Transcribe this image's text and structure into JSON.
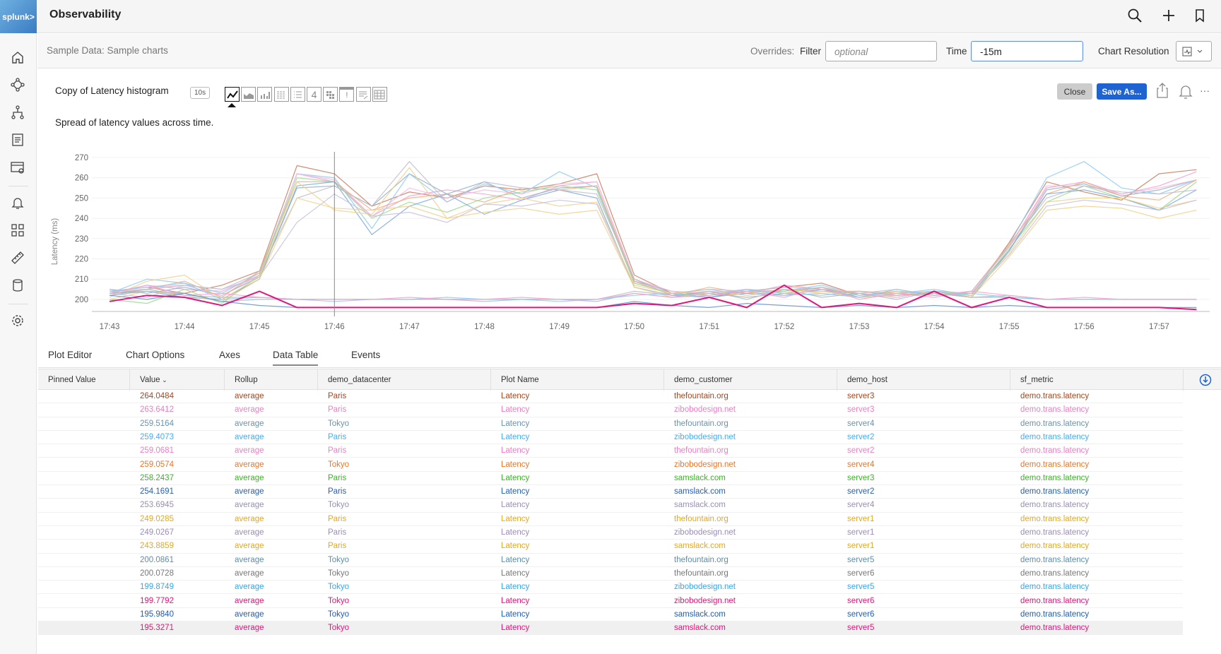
{
  "header": {
    "logo": "splunk>",
    "title": "Observability",
    "icons": [
      "search-icon",
      "plus-icon",
      "bookmark-icon"
    ]
  },
  "sidebar": {
    "icons": [
      "home-icon",
      "infrastructure-icon",
      "apm-icon",
      "logs-icon",
      "synthetics-icon",
      "alerts-icon",
      "dashboards-icon",
      "ruler-icon",
      "database-icon",
      "settings-icon"
    ]
  },
  "overrides": {
    "breadcrumb": "Sample Data: Sample charts",
    "overrides_label": "Overrides:",
    "filter_label": "Filter",
    "filter_placeholder": "optional",
    "time_label": "Time",
    "time_value": "-15m",
    "resolution_label": "Chart Resolution"
  },
  "chart_header": {
    "title": "Copy of Latency histogram",
    "refresh_badge": "10s",
    "description": "Spread of latency values across time.",
    "close_label": "Close",
    "save_as_label": "Save As...",
    "more_label": "···",
    "type_icons": [
      "line-chart-icon",
      "area-chart-icon",
      "column-chart-icon",
      "histogram-icon",
      "list-icon",
      "single-value-icon",
      "heatmap-icon",
      "event-feed-icon",
      "text-icon",
      "table-icon"
    ],
    "selected_type": "line-chart-icon",
    "type_labels": {
      "single": "4",
      "event": "!"
    }
  },
  "tabs": [
    {
      "label": "Plot Editor"
    },
    {
      "label": "Chart Options"
    },
    {
      "label": "Axes"
    },
    {
      "label": "Data Table",
      "active": true
    },
    {
      "label": "Events"
    }
  ],
  "table": {
    "columns": [
      "Pinned Value",
      "Value",
      "Rollup",
      "demo_datacenter",
      "Plot Name",
      "demo_customer",
      "demo_host",
      "sf_metric"
    ],
    "sort_indicator": "⌄",
    "rows": [
      {
        "value": "264.0484",
        "rollup": "average",
        "dc": "Paris",
        "plot": "Latency",
        "customer": "thefountain.org",
        "host": "server3",
        "metric": "demo.trans.latency",
        "color": "#a8461f"
      },
      {
        "value": "263.6412",
        "rollup": "average",
        "dc": "Paris",
        "plot": "Latency",
        "customer": "zibobodesign.net",
        "host": "server3",
        "metric": "demo.trans.latency",
        "color": "#f07cc4"
      },
      {
        "value": "259.5164",
        "rollup": "average",
        "dc": "Tokyo",
        "plot": "Latency",
        "customer": "thefountain.org",
        "host": "server4",
        "metric": "demo.trans.latency",
        "color": "#6a93ad"
      },
      {
        "value": "259.4073",
        "rollup": "average",
        "dc": "Paris",
        "plot": "Latency",
        "customer": "zibobodesign.net",
        "host": "server2",
        "metric": "demo.trans.latency",
        "color": "#45adf5"
      },
      {
        "value": "259.0681",
        "rollup": "average",
        "dc": "Paris",
        "plot": "Latency",
        "customer": "thefountain.org",
        "host": "server2",
        "metric": "demo.trans.latency",
        "color": "#f07cc4"
      },
      {
        "value": "259.0574",
        "rollup": "average",
        "dc": "Tokyo",
        "plot": "Latency",
        "customer": "zibobodesign.net",
        "host": "server4",
        "metric": "demo.trans.latency",
        "color": "#e8762a"
      },
      {
        "value": "258.2437",
        "rollup": "average",
        "dc": "Paris",
        "plot": "Latency",
        "customer": "samslack.com",
        "host": "server3",
        "metric": "demo.trans.latency",
        "color": "#3db22a"
      },
      {
        "value": "254.1691",
        "rollup": "average",
        "dc": "Paris",
        "plot": "Latency",
        "customer": "samslack.com",
        "host": "server2",
        "metric": "demo.trans.latency",
        "color": "#2461b5"
      },
      {
        "value": "253.6945",
        "rollup": "average",
        "dc": "Tokyo",
        "plot": "Latency",
        "customer": "samslack.com",
        "host": "server4",
        "metric": "demo.trans.latency",
        "color": "#9a8fb2"
      },
      {
        "value": "249.0285",
        "rollup": "average",
        "dc": "Paris",
        "plot": "Latency",
        "customer": "thefountain.org",
        "host": "server1",
        "metric": "demo.trans.latency",
        "color": "#e0a82a"
      },
      {
        "value": "249.0267",
        "rollup": "average",
        "dc": "Paris",
        "plot": "Latency",
        "customer": "zibobodesign.net",
        "host": "server1",
        "metric": "demo.trans.latency",
        "color": "#9a8cb8"
      },
      {
        "value": "243.8859",
        "rollup": "average",
        "dc": "Paris",
        "plot": "Latency",
        "customer": "samslack.com",
        "host": "server1",
        "metric": "demo.trans.latency",
        "color": "#e0a82a"
      },
      {
        "value": "200.0861",
        "rollup": "average",
        "dc": "Tokyo",
        "plot": "Latency",
        "customer": "thefountain.org",
        "host": "server5",
        "metric": "demo.trans.latency",
        "color": "#5e8ea8"
      },
      {
        "value": "200.0728",
        "rollup": "average",
        "dc": "Tokyo",
        "plot": "Latency",
        "customer": "thefountain.org",
        "host": "server6",
        "metric": "demo.trans.latency",
        "color": "#777777"
      },
      {
        "value": "199.8749",
        "rollup": "average",
        "dc": "Tokyo",
        "plot": "Latency",
        "customer": "zibobodesign.net",
        "host": "server5",
        "metric": "demo.trans.latency",
        "color": "#33a8f0"
      },
      {
        "value": "199.7792",
        "rollup": "average",
        "dc": "Tokyo",
        "plot": "Latency",
        "customer": "zibobodesign.net",
        "host": "server6",
        "metric": "demo.trans.latency",
        "color": "#e0177a"
      },
      {
        "value": "195.9840",
        "rollup": "average",
        "dc": "Tokyo",
        "plot": "Latency",
        "customer": "samslack.com",
        "host": "server6",
        "metric": "demo.trans.latency",
        "color": "#1f5db5"
      },
      {
        "value": "195.3271",
        "rollup": "average",
        "dc": "Tokyo",
        "plot": "Latency",
        "customer": "samslack.com",
        "host": "server5",
        "metric": "demo.trans.latency",
        "color": "#e0177a",
        "highlighted": true
      }
    ]
  },
  "chart_data": {
    "type": "line",
    "xlabel": "",
    "ylabel": "Latency (ms)",
    "ylim": [
      193,
      272
    ],
    "yticks": [
      200,
      210,
      220,
      230,
      240,
      250,
      260,
      270
    ],
    "xticks": [
      "17:43",
      "17:44",
      "17:45",
      "17:46",
      "17:47",
      "17:48",
      "17:49",
      "17:50",
      "17:51",
      "17:52",
      "17:53",
      "17:54",
      "17:55",
      "17:56",
      "17:57"
    ],
    "x": [
      "17:43:00",
      "17:43:30",
      "17:44:00",
      "17:44:30",
      "17:45:00",
      "17:45:30",
      "17:46:00",
      "17:46:30",
      "17:47:00",
      "17:47:30",
      "17:48:00",
      "17:48:30",
      "17:49:00",
      "17:49:30",
      "17:50:00",
      "17:50:30",
      "17:51:00",
      "17:51:30",
      "17:52:00",
      "17:52:30",
      "17:53:00",
      "17:53:30",
      "17:54:00",
      "17:54:30",
      "17:55:00",
      "17:55:30",
      "17:56:00",
      "17:56:30",
      "17:57:00",
      "17:57:30"
    ],
    "cursor": "17:46:00",
    "grid": true,
    "series": [
      {
        "color": "#c97a5a",
        "values": [
          204,
          206,
          203,
          207,
          214,
          266,
          262,
          246,
          253,
          250,
          256,
          254,
          257,
          262,
          212,
          203,
          201,
          204,
          206,
          208,
          202,
          204,
          203,
          202,
          228,
          258,
          253,
          249,
          262,
          264
        ]
      },
      {
        "color": "#f5a0d0",
        "values": [
          203,
          207,
          205,
          204,
          212,
          262,
          258,
          241,
          251,
          254,
          252,
          249,
          256,
          258,
          210,
          202,
          204,
          203,
          207,
          205,
          203,
          201,
          204,
          203,
          226,
          255,
          258,
          252,
          256,
          263
        ]
      },
      {
        "color": "#8fb0c6",
        "values": [
          205,
          203,
          206,
          202,
          211,
          255,
          256,
          246,
          262,
          252,
          258,
          250,
          255,
          256,
          209,
          204,
          202,
          205,
          203,
          206,
          201,
          204,
          202,
          203,
          224,
          254,
          257,
          251,
          254,
          259
        ]
      },
      {
        "color": "#8ccaf7",
        "values": [
          203,
          210,
          208,
          203,
          213,
          262,
          260,
          235,
          262,
          248,
          257,
          252,
          263,
          255,
          208,
          203,
          205,
          202,
          204,
          207,
          202,
          203,
          205,
          202,
          227,
          260,
          268,
          255,
          252,
          259
        ]
      },
      {
        "color": "#f7b8dc",
        "values": [
          204,
          206,
          207,
          202,
          212,
          262,
          259,
          241,
          255,
          250,
          254,
          252,
          257,
          258,
          210,
          204,
          203,
          205,
          204,
          206,
          203,
          202,
          204,
          203,
          226,
          256,
          256,
          252,
          255,
          259
        ]
      },
      {
        "color": "#f0ae80",
        "values": [
          202,
          205,
          209,
          201,
          214,
          258,
          258,
          244,
          250,
          252,
          248,
          255,
          254,
          256,
          209,
          202,
          206,
          203,
          205,
          204,
          204,
          203,
          202,
          204,
          227,
          252,
          258,
          251,
          249,
          259
        ]
      },
      {
        "color": "#9ad98e",
        "values": [
          200,
          198,
          205,
          198,
          212,
          260,
          258,
          240,
          248,
          243,
          250,
          253,
          256,
          254,
          208,
          203,
          202,
          204,
          204,
          206,
          202,
          203,
          204,
          202,
          225,
          248,
          256,
          250,
          244,
          258
        ]
      },
      {
        "color": "#7aa8e0",
        "values": [
          203,
          204,
          201,
          200,
          210,
          256,
          258,
          232,
          246,
          252,
          242,
          249,
          254,
          250,
          206,
          202,
          201,
          203,
          202,
          205,
          201,
          202,
          203,
          201,
          224,
          252,
          254,
          250,
          244,
          254
        ]
      },
      {
        "color": "#c0bccc",
        "values": [
          204,
          205,
          207,
          205,
          213,
          250,
          256,
          246,
          268,
          248,
          258,
          255,
          254,
          252,
          210,
          203,
          205,
          204,
          206,
          205,
          203,
          205,
          202,
          204,
          226,
          250,
          256,
          253,
          252,
          254
        ]
      },
      {
        "color": "#f0d08a",
        "values": [
          201,
          209,
          212,
          200,
          211,
          258,
          244,
          242,
          265,
          240,
          247,
          250,
          246,
          248,
          207,
          203,
          204,
          202,
          205,
          203,
          201,
          204,
          203,
          202,
          223,
          248,
          250,
          250,
          245,
          249
        ]
      },
      {
        "color": "#c7bedc",
        "values": [
          203,
          201,
          207,
          205,
          211,
          238,
          252,
          241,
          243,
          238,
          247,
          246,
          249,
          247,
          206,
          202,
          203,
          205,
          203,
          204,
          202,
          203,
          204,
          203,
          222,
          246,
          249,
          247,
          244,
          249
        ]
      },
      {
        "color": "#f0d08a",
        "values": [
          200,
          204,
          202,
          199,
          210,
          250,
          245,
          244,
          246,
          240,
          243,
          245,
          242,
          244,
          206,
          201,
          203,
          201,
          203,
          204,
          201,
          202,
          203,
          201,
          221,
          244,
          246,
          245,
          240,
          244
        ]
      },
      {
        "color": "#9dbccd",
        "values": [
          202,
          204,
          203,
          199,
          200,
          200,
          200,
          200,
          200,
          200,
          199,
          200,
          200,
          199,
          203,
          201,
          204,
          200,
          205,
          201,
          203,
          200,
          204,
          201,
          201,
          200,
          200,
          200,
          200,
          200
        ]
      },
      {
        "color": "#b8b8b8",
        "values": [
          203,
          205,
          202,
          201,
          201,
          200,
          200,
          200,
          200,
          200,
          200,
          200,
          200,
          200,
          204,
          202,
          203,
          201,
          203,
          202,
          204,
          202,
          203,
          201,
          202,
          200,
          200,
          200,
          200,
          200
        ]
      },
      {
        "color": "#8ccaf7",
        "values": [
          204,
          206,
          208,
          200,
          201,
          200,
          199,
          200,
          200,
          201,
          200,
          200,
          199,
          200,
          202,
          203,
          201,
          205,
          202,
          203,
          201,
          205,
          202,
          203,
          201,
          200,
          200,
          200,
          200,
          200
        ]
      },
      {
        "color": "#f5a0d0",
        "values": [
          203,
          207,
          202,
          203,
          201,
          200,
          200,
          200,
          201,
          200,
          200,
          201,
          200,
          200,
          203,
          201,
          202,
          204,
          201,
          206,
          200,
          203,
          201,
          204,
          202,
          200,
          201,
          200,
          200,
          200
        ]
      },
      {
        "color": "#5e8fd0",
        "values": [
          202,
          200,
          203,
          199,
          197,
          196,
          196,
          196,
          196,
          196,
          196,
          196,
          196,
          196,
          199,
          197,
          196,
          198,
          197,
          196,
          197,
          196,
          197,
          196,
          197,
          196,
          196,
          196,
          196,
          196
        ]
      },
      {
        "color": "#e0177a",
        "values": [
          199,
          202,
          201,
          197,
          204,
          196,
          196,
          196,
          196,
          196,
          196,
          196,
          196,
          196,
          198,
          197,
          201,
          196,
          207,
          196,
          198,
          196,
          204,
          196,
          201,
          196,
          196,
          196,
          196,
          195
        ]
      }
    ]
  }
}
